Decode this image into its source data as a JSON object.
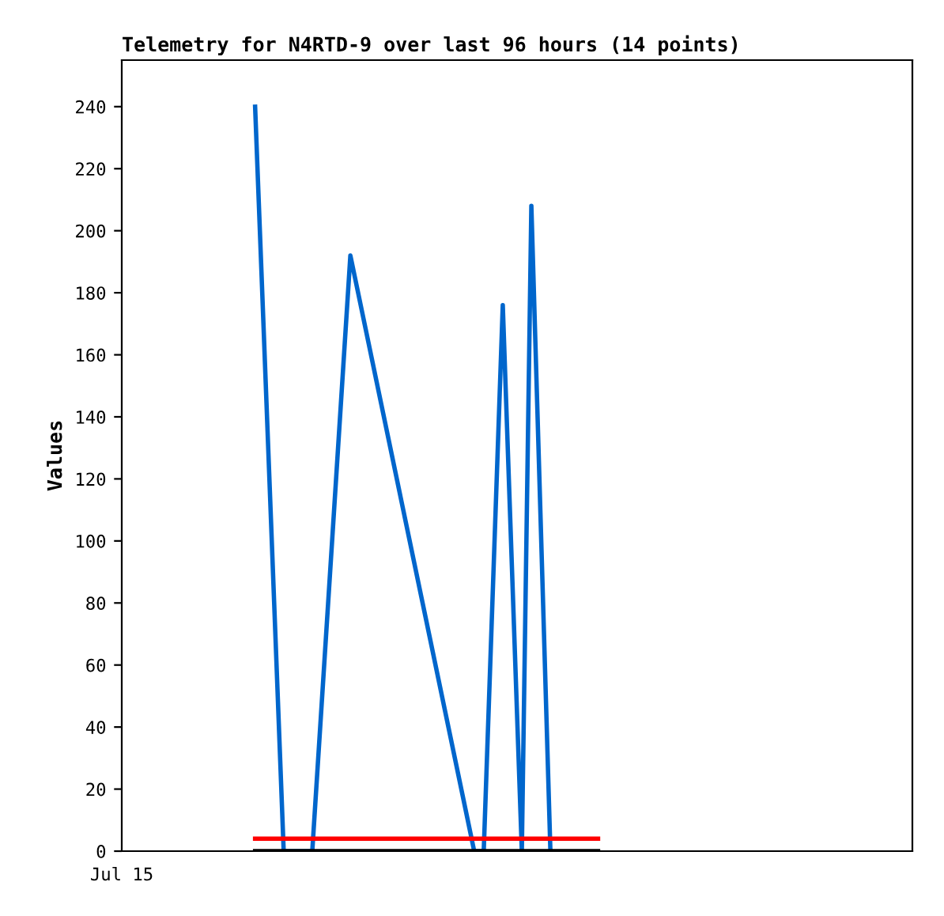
{
  "chart_data": {
    "type": "line",
    "title": "Telemetry for N4RTD-9 over last 96 hours (14 points)",
    "ylabel": "Values",
    "annotations": [
      "Jul 15"
    ],
    "categories": [
      null,
      null,
      null,
      null,
      null,
      null,
      null,
      null,
      null,
      null,
      null,
      null,
      null,
      null,
      null,
      null,
      null,
      null,
      null,
      null,
      null,
      null,
      null,
      null,
      null,
      null,
      null,
      null,
      null,
      null,
      null,
      null,
      null,
      null,
      null,
      null,
      null,
      null,
      null,
      null,
      null,
      null,
      null,
      null,
      null,
      null,
      null,
      null,
      null,
      null,
      null,
      null,
      null,
      null,
      null,
      null,
      null,
      null,
      null,
      null,
      null,
      null,
      null,
      null,
      null,
      null,
      null,
      null,
      null,
      null,
      null,
      null,
      null,
      null,
      null,
      null,
      null,
      null,
      null,
      null,
      null,
      null,
      null,
      null
    ],
    "series": [
      {
        "color": "#0066cc",
        "values": [
          null,
          null,
          null,
          null,
          null,
          null,
          null,
          null,
          null,
          null,
          null,
          null,
          null,
          null,
          240,
          null,
          null,
          0,
          null,
          null,
          0,
          null,
          null,
          null,
          192,
          null,
          null,
          null,
          null,
          null,
          null,
          null,
          null,
          null,
          null,
          null,
          null,
          0,
          0,
          null,
          176,
          null,
          0,
          208,
          null,
          0,
          null,
          null,
          null,
          null,
          null,
          null,
          null,
          null,
          null,
          null,
          null,
          null,
          null,
          null,
          null,
          null,
          null,
          null,
          null,
          null,
          null,
          null,
          null,
          null,
          null,
          null,
          null,
          null,
          null,
          null,
          null,
          null,
          null,
          null,
          null,
          null,
          null,
          null
        ]
      },
      {
        "color": "#ff0000",
        "values": [
          null,
          null,
          null,
          null,
          null,
          null,
          null,
          null,
          null,
          null,
          null,
          null,
          null,
          null,
          4,
          4,
          4,
          4,
          4,
          4,
          4,
          4,
          4,
          4,
          4,
          4,
          4,
          4,
          4,
          4,
          4,
          4,
          4,
          4,
          4,
          4,
          4,
          4,
          4,
          4,
          4,
          4,
          4,
          4,
          4,
          4,
          4,
          4,
          4,
          4,
          4,
          null,
          null,
          null,
          null,
          null,
          null,
          null,
          null,
          null,
          null,
          null,
          null,
          null,
          null,
          null,
          null,
          null,
          null,
          null,
          null,
          null,
          null,
          null,
          null,
          null,
          null,
          null,
          null,
          null,
          null,
          null,
          null,
          null
        ]
      },
      {
        "color": "#000000",
        "values": [
          null,
          null,
          null,
          null,
          null,
          null,
          null,
          null,
          null,
          null,
          null,
          null,
          null,
          null,
          0,
          0,
          0,
          0,
          0,
          0,
          0,
          0,
          0,
          0,
          0,
          0,
          0,
          0,
          0,
          0,
          0,
          0,
          0,
          0,
          0,
          0,
          0,
          0,
          0,
          0,
          0,
          0,
          0,
          0,
          0,
          0,
          0,
          0,
          0,
          0,
          0,
          null,
          null,
          null,
          null,
          null,
          null,
          null,
          null,
          null,
          null,
          null,
          null,
          null,
          null,
          null,
          null,
          null,
          null,
          null,
          null,
          null,
          null,
          null,
          null,
          null,
          null,
          null,
          null,
          null,
          null,
          null,
          null,
          null
        ]
      }
    ],
    "ylim": [
      0,
      255
    ],
    "yticks": [
      0,
      20,
      40,
      60,
      80,
      100,
      120,
      140,
      160,
      180,
      200,
      220,
      240
    ],
    "tick_labels": "y",
    "grid": false,
    "marker": "none",
    "line_style": "solid"
  }
}
